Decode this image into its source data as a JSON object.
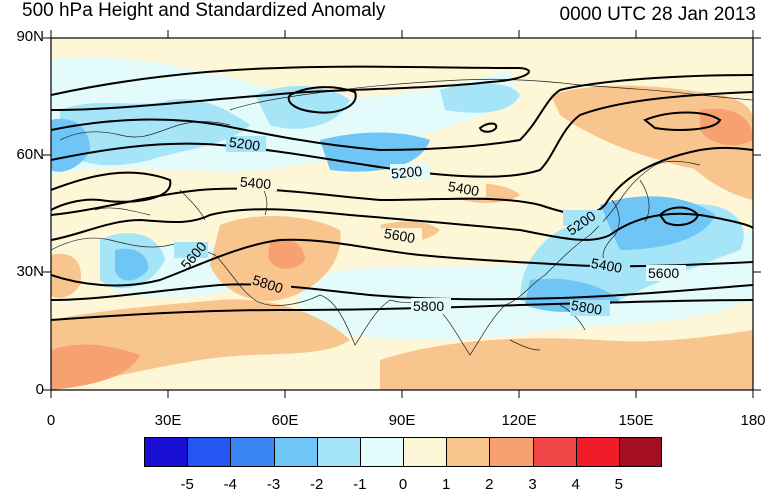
{
  "title": "500 hPa Height and Standardized Anomaly",
  "valid_time": "0000 UTC 28 Jan 2013",
  "lat_labels": [
    "90N",
    "60N",
    "30N",
    "0"
  ],
  "lon_labels": [
    "0",
    "30E",
    "60E",
    "90E",
    "120E",
    "150E",
    "180"
  ],
  "map_extent": {
    "lon": [
      0,
      180
    ],
    "lat": [
      0,
      90
    ]
  },
  "height_contour_labels": [
    "5200",
    "5200",
    "5400",
    "5400",
    "5600",
    "5600",
    "5800",
    "5800",
    "5800",
    "5400",
    "5600",
    "5200"
  ],
  "colorbar": {
    "labels": [
      "-5",
      "-4",
      "-3",
      "-2",
      "-1",
      "0",
      "1",
      "2",
      "3",
      "4",
      "5"
    ],
    "colors": [
      "#1a0fd4",
      "#2456f2",
      "#3c85f5",
      "#6fc5f5",
      "#a6e4f7",
      "#e4fbfc",
      "#fdf7d8",
      "#f9c58e",
      "#f7a070",
      "#ef4646",
      "#f01c2a",
      "#a30f21"
    ]
  },
  "colors": {
    "background_field": "#fdf7d8",
    "contour": "#000000",
    "coastline": "#222222"
  }
}
